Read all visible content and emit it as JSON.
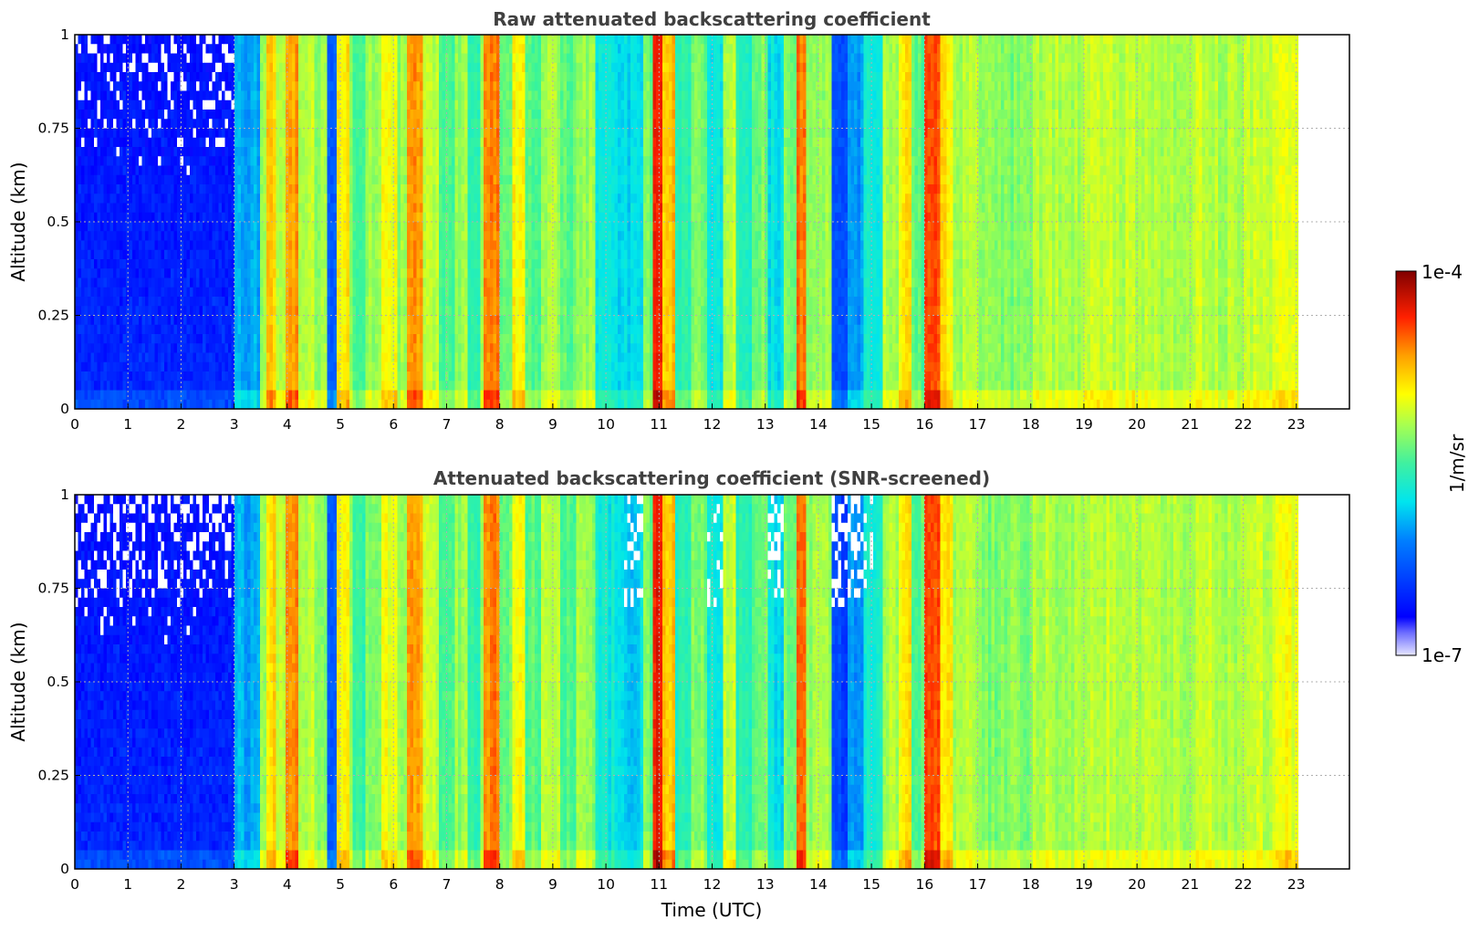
{
  "chart_data": [
    {
      "type": "heatmap",
      "title": "Raw attenuated backscattering coefficient",
      "xlabel": "",
      "ylabel": "Altitude (km)",
      "xlim": [
        0,
        24
      ],
      "ylim": [
        0,
        1
      ],
      "x_ticks": [
        "0",
        "1",
        "2",
        "3",
        "4",
        "5",
        "6",
        "7",
        "8",
        "9",
        "10",
        "11",
        "12",
        "13",
        "14",
        "15",
        "16",
        "17",
        "18",
        "19",
        "20",
        "21",
        "22",
        "23"
      ],
      "y_ticks": [
        "0",
        "0.25",
        "0.5",
        "0.75",
        "1"
      ],
      "data_end_hour": 23,
      "grid": true,
      "screened": false
    },
    {
      "type": "heatmap",
      "title": "Attenuated backscattering coefficient (SNR-screened)",
      "xlabel": "Time (UTC)",
      "ylabel": "Altitude (km)",
      "xlim": [
        0,
        24
      ],
      "ylim": [
        0,
        1
      ],
      "x_ticks": [
        "0",
        "1",
        "2",
        "3",
        "4",
        "5",
        "6",
        "7",
        "8",
        "9",
        "10",
        "11",
        "12",
        "13",
        "14",
        "15",
        "16",
        "17",
        "18",
        "19",
        "20",
        "21",
        "22",
        "23"
      ],
      "y_ticks": [
        "0",
        "0.25",
        "0.5",
        "0.75",
        "1"
      ],
      "data_end_hour": 23,
      "grid": true,
      "screened": true
    }
  ],
  "colorbar": {
    "label": "1/m/sr",
    "min_label": "1e-7",
    "max_label": "1e-4",
    "colormap": "jet",
    "position": "right"
  },
  "colors": {
    "no_data": "#ffffff",
    "grid": "#b0b0b0",
    "title": "#404040"
  }
}
